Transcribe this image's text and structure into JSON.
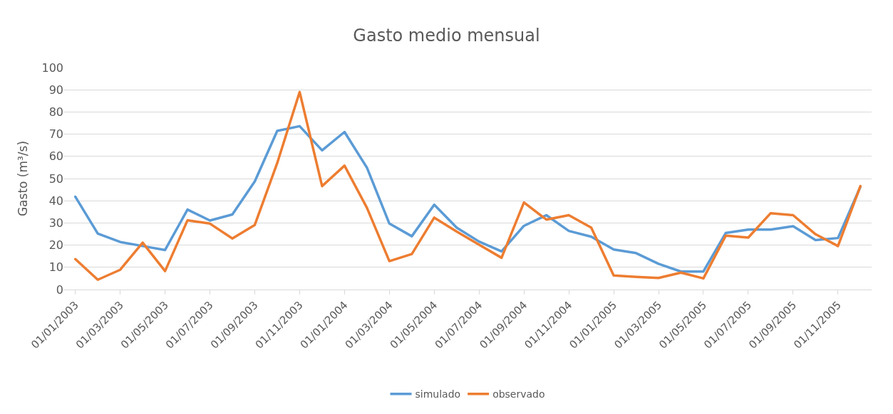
{
  "chart_data": {
    "type": "line",
    "title": "Gasto medio mensual",
    "ylabel": "Gasto (m³/s)",
    "categories": [
      "01/01/2003",
      null,
      "01/03/2003",
      null,
      "01/05/2003",
      null,
      "01/07/2003",
      null,
      "01/09/2003",
      null,
      "01/11/2003",
      null,
      "01/01/2004",
      null,
      "01/03/2004",
      null,
      "01/05/2004",
      null,
      "01/07/2004",
      null,
      "01/09/2004",
      null,
      "01/11/2004",
      null,
      "01/01/2005",
      null,
      "01/03/2005",
      null,
      "01/05/2005",
      null,
      "01/07/2005",
      null,
      "01/09/2005",
      null,
      "01/11/2005",
      null
    ],
    "series": [
      {
        "name": "simulado",
        "color": "#5b9bd5",
        "values": [
          41.8,
          25.2,
          21.4,
          19.6,
          17.8,
          36,
          31.1,
          33.8,
          48.7,
          71.5,
          73.6,
          62.7,
          71,
          54.9,
          29.7,
          24,
          38.2,
          27.9,
          21.6,
          17.2,
          28.7,
          33.5,
          26.4,
          23.8,
          18,
          16.4,
          11.6,
          8.1,
          8.1,
          25.5,
          27,
          27,
          28.5,
          22.3,
          23.2,
          46.3
        ]
      },
      {
        "name": "observado",
        "color": "#ed7d31",
        "values": [
          13.7,
          4.4,
          8.9,
          21.1,
          8.3,
          31.2,
          29.7,
          23,
          29.1,
          57,
          89,
          46.6,
          55.8,
          36.8,
          12.8,
          16,
          32.4,
          26.1,
          20.2,
          14.3,
          39.2,
          31.5,
          33.5,
          27.9,
          6.3,
          5.7,
          5.2,
          7.6,
          5,
          24.3,
          23.4,
          34.4,
          33.5,
          24.9,
          19.6,
          46.6
        ]
      }
    ],
    "ylim": [
      0,
      100
    ],
    "yticks": [
      0,
      10,
      20,
      30,
      40,
      50,
      60,
      70,
      80,
      90,
      100
    ],
    "grid": "y",
    "legend": "bottom",
    "marker": "none",
    "line_style": "solid"
  }
}
